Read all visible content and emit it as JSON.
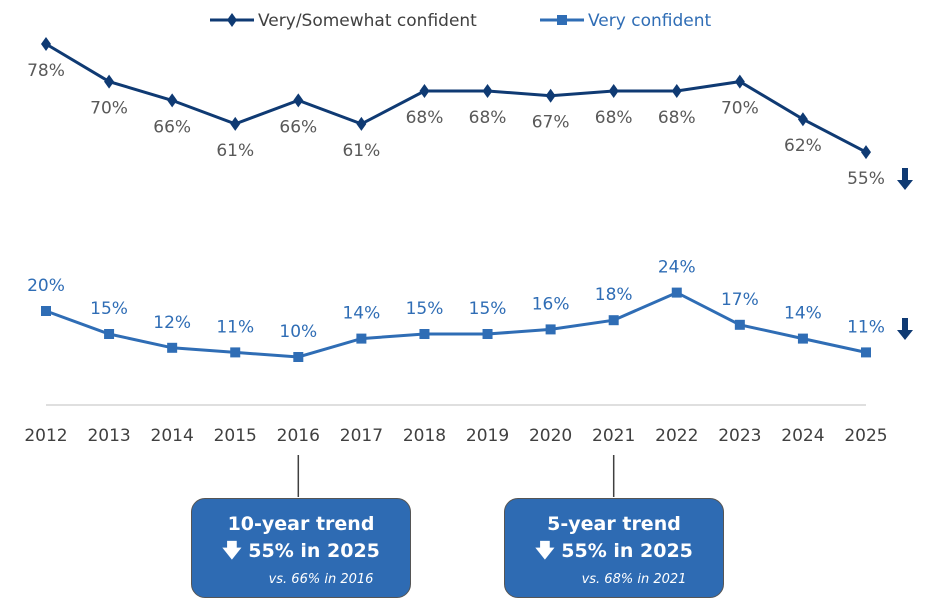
{
  "chart_data": {
    "type": "line",
    "categories": [
      "2012",
      "2013",
      "2014",
      "2015",
      "2016",
      "2017",
      "2018",
      "2019",
      "2020",
      "2021",
      "2022",
      "2023",
      "2024",
      "2025"
    ],
    "series": [
      {
        "name": "Very/Somewhat confident",
        "color": "#0f3a73",
        "marker": "diamond",
        "values": [
          78,
          70,
          66,
          61,
          66,
          61,
          68,
          68,
          67,
          68,
          68,
          70,
          62,
          55
        ]
      },
      {
        "name": "Very confident",
        "color": "#2f6db5",
        "marker": "square",
        "values": [
          20,
          15,
          12,
          11,
          10,
          14,
          15,
          15,
          16,
          18,
          24,
          17,
          14,
          11
        ]
      }
    ],
    "value_suffix": "%",
    "legend": "top",
    "grid": false,
    "trend_icon": "down-arrow-icon"
  },
  "callouts": [
    {
      "title": "10-year trend",
      "value": "55% in 2025",
      "sub": "vs. 66% in 2016",
      "year": "2016",
      "icon": "down-arrow-icon"
    },
    {
      "title": "5-year trend",
      "value": "55% in 2025",
      "sub": "vs. 68% in 2021",
      "year": "2021",
      "icon": "down-arrow-icon"
    }
  ]
}
